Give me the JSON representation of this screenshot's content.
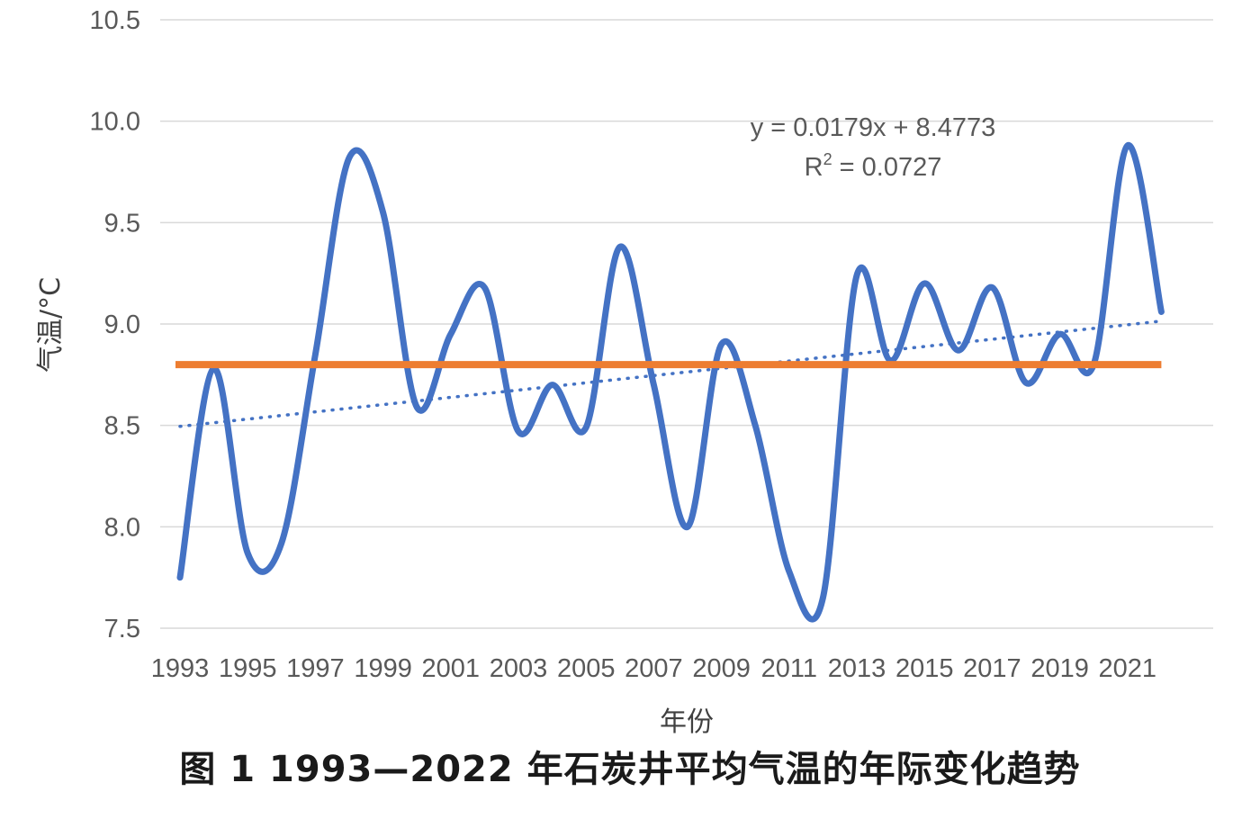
{
  "chart_data": {
    "type": "line",
    "xlabel": "年份",
    "ylabel": "气温/°C",
    "ylim": [
      7.5,
      10.5
    ],
    "yticks": [
      "7.5",
      "8.0",
      "8.5",
      "9.0",
      "9.5",
      "10.0",
      "10.5"
    ],
    "x": [
      1993,
      1994,
      1995,
      1996,
      1997,
      1998,
      1999,
      2000,
      2001,
      2002,
      2003,
      2004,
      2005,
      2006,
      2007,
      2008,
      2009,
      2010,
      2011,
      2012,
      2013,
      2014,
      2015,
      2016,
      2017,
      2018,
      2019,
      2020,
      2021,
      2022
    ],
    "xtick_labels": [
      "1993",
      "1995",
      "1997",
      "1999",
      "2001",
      "2003",
      "2005",
      "2007",
      "2009",
      "2011",
      "2013",
      "2015",
      "2017",
      "2019",
      "2021"
    ],
    "series": [
      {
        "values": [
          7.75,
          8.78,
          7.87,
          7.92,
          8.85,
          9.82,
          9.55,
          8.59,
          8.95,
          9.18,
          8.47,
          8.7,
          8.49,
          9.38,
          8.7,
          8.0,
          8.9,
          8.5,
          7.78,
          7.65,
          9.24,
          8.82,
          9.2,
          8.87,
          9.18,
          8.71,
          8.95,
          8.8,
          9.88,
          9.06
        ],
        "color": "#4472C4"
      }
    ],
    "mean_line": {
      "value": 8.8,
      "color": "#ED7D31"
    },
    "trendline": {
      "slope": 0.0179,
      "intercept": 8.4773,
      "style": "dotted",
      "color": "#4472C4"
    },
    "trendline_equation": "y = 0.0179x + 8.4773",
    "r_squared_prefix": "R",
    "r_squared_exponent": "2",
    "r_squared_value": " = 0.0727",
    "grid": true,
    "legend": "none"
  },
  "caption": "图 1  1993—2022 年石炭井平均气温的年际变化趋势"
}
